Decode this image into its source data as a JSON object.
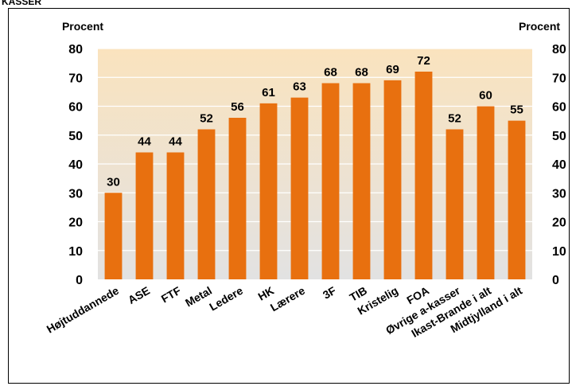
{
  "header": {
    "cut_label": "KASSER"
  },
  "chart_data": {
    "type": "bar",
    "title": "",
    "ylabel_left": "Procent",
    "ylabel_right": "Procent",
    "ylim": [
      0,
      80
    ],
    "yticks": [
      0,
      10,
      20,
      30,
      40,
      50,
      60,
      70,
      80
    ],
    "categories": [
      "Højtuddannede",
      "ASE",
      "FTF",
      "Metal",
      "Ledere",
      "HK",
      "Lærere",
      "3F",
      "TIB",
      "Kristelig",
      "FOA",
      "Øvrige a-kasser",
      "Ikast-Brande i alt",
      "Midtjylland i alt"
    ],
    "values": [
      30,
      44,
      44,
      52,
      56,
      61,
      63,
      68,
      68,
      69,
      72,
      52,
      60,
      55
    ],
    "data_labels": [
      "30",
      "44",
      "44",
      "52",
      "56",
      "61",
      "63",
      "68",
      "68",
      "69",
      "72",
      "52",
      "60",
      "55"
    ],
    "bar_color": "#E8700F",
    "plot_gradient": [
      "#FAE3BE",
      "#E2E2E2"
    ],
    "grid": true,
    "legend": "none"
  }
}
